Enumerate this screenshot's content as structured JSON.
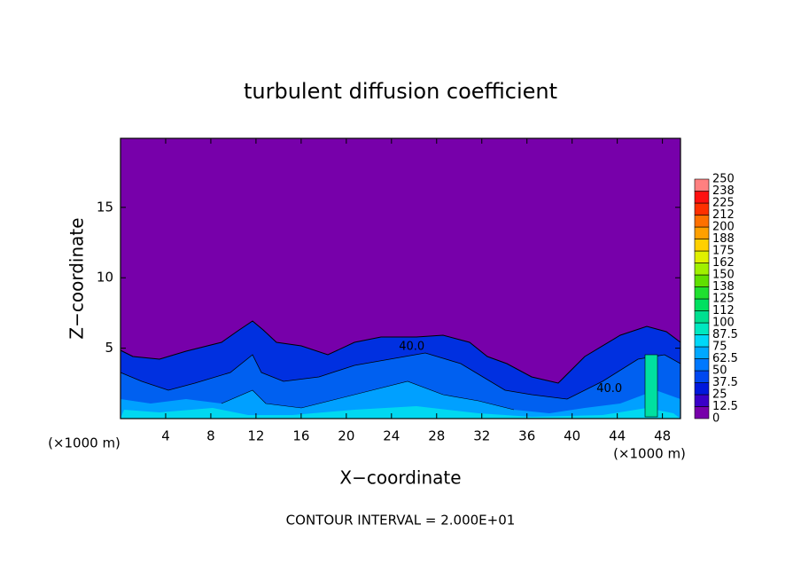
{
  "chart_data": {
    "type": "contour",
    "title": "turbulent diffusion coefficient",
    "x_label": "X−coordinate",
    "y_label": "Z−coordinate",
    "x_unit_labels": [
      "(×1000 m)",
      "(×1000 m)"
    ],
    "footnote": "CONTOUR INTERVAL = 2.000E+01",
    "xlim": [
      0,
      49.6
    ],
    "ylim": [
      0,
      19.9
    ],
    "xticks": [
      4,
      8,
      12,
      16,
      20,
      24,
      28,
      32,
      36,
      40,
      44,
      48
    ],
    "yticks": [
      5,
      10,
      15
    ],
    "levels": [
      0,
      12.5,
      25,
      37.5,
      50,
      62.5,
      75,
      87.5,
      100,
      112,
      125,
      138,
      150,
      162,
      175,
      188,
      200,
      212,
      225,
      238,
      250
    ],
    "colors": [
      "#7700aa",
      "#3a00c8",
      "#0018dc",
      "#0048f0",
      "#0078ff",
      "#00a8ff",
      "#00d8f8",
      "#00e8c0",
      "#00e090",
      "#00e060",
      "#20e030",
      "#60e000",
      "#a0f000",
      "#e0f000",
      "#ffd000",
      "#ffa000",
      "#ff7000",
      "#ff3000",
      "#ff1010",
      "#ff8080"
    ],
    "annotations": [
      {
        "text": "40.0",
        "x": 25.8,
        "y": 5.1
      },
      {
        "text": "40.0",
        "x": 43.3,
        "y": 2.1
      }
    ]
  }
}
